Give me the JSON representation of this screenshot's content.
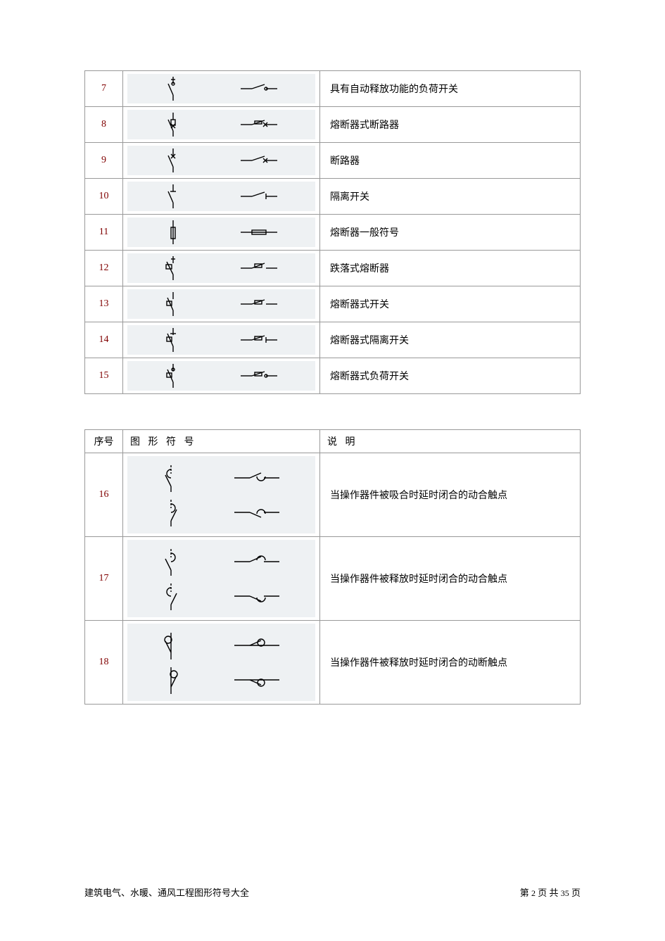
{
  "table1": {
    "rows": [
      {
        "num": "7",
        "desc": "具有自动释放功能的负荷开关",
        "symbol": "auto-release-switch"
      },
      {
        "num": "8",
        "desc": "熔断器式断路器",
        "symbol": "fuse-breaker"
      },
      {
        "num": "9",
        "desc": "断路器",
        "symbol": "breaker"
      },
      {
        "num": "10",
        "desc": "隔离开关",
        "symbol": "disconnect-switch"
      },
      {
        "num": "11",
        "desc": "熔断器一般符号",
        "symbol": "fuse-general"
      },
      {
        "num": "12",
        "desc": "跌落式熔断器",
        "symbol": "dropout-fuse"
      },
      {
        "num": "13",
        "desc": "熔断器式开关",
        "symbol": "fuse-switch"
      },
      {
        "num": "14",
        "desc": "熔断器式隔离开关",
        "symbol": "fuse-disconnect-switch"
      },
      {
        "num": "15",
        "desc": "熔断器式负荷开关",
        "symbol": "fuse-load-switch"
      }
    ]
  },
  "table2": {
    "headers": {
      "num": "序号",
      "symbol": "图 形 符 号",
      "desc": "说   明"
    },
    "rows": [
      {
        "num": "16",
        "desc": "当操作器件被吸合时延时闭合的动合触点",
        "symbol": "delay-close-no"
      },
      {
        "num": "17",
        "desc": "当操作器件被释放时延时闭合的动合触点",
        "symbol": "delay-release-no"
      },
      {
        "num": "18",
        "desc": "当操作器件被释放时延时闭合的动断触点",
        "symbol": "delay-release-nc"
      }
    ]
  },
  "footer": {
    "title": "建筑电气、水暖、通风工程图形符号大全",
    "page_prefix": "第",
    "page_current": "2",
    "page_mid": "页 共",
    "page_total": "35",
    "page_suffix": "页"
  },
  "styles": {
    "border_color": "#999999",
    "num_color": "#800000",
    "symbol_bg": "#eef1f3",
    "page_bg": "#ffffff",
    "row_height_short": 50,
    "row_height_tall": 120,
    "font_size": 14
  },
  "svg_defs": {
    "stroke": "#000000",
    "stroke_width": 1.4
  }
}
